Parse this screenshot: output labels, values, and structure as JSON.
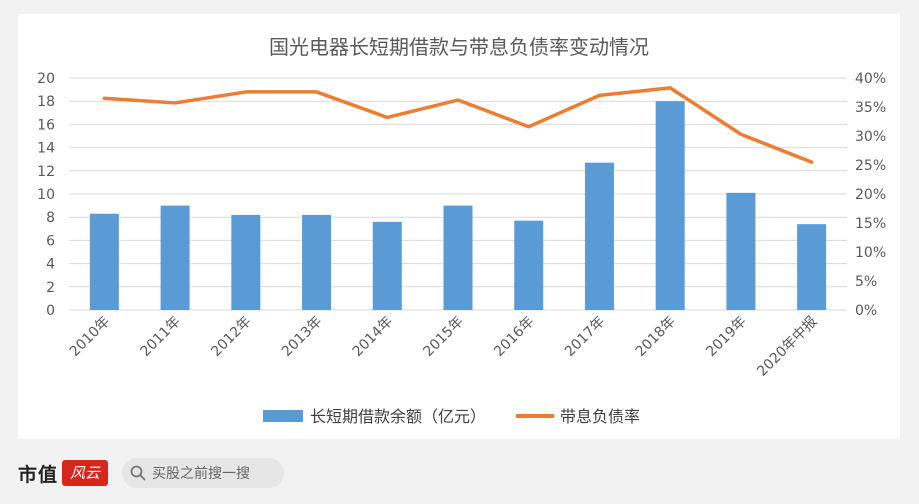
{
  "chart_data": {
    "type": "bar",
    "title": "国光电器长短期借款与带息负债率变动情况",
    "categories": [
      "2010年",
      "2011年",
      "2012年",
      "2013年",
      "2014年",
      "2015年",
      "2016年",
      "2017年",
      "2018年",
      "2019年",
      "2020年中报"
    ],
    "series": [
      {
        "name": "长短期借款余额（亿元）",
        "type": "bar",
        "axis": "left",
        "color": "#5b9bd5",
        "values": [
          8.3,
          9.0,
          8.2,
          8.2,
          7.6,
          9.0,
          7.7,
          12.7,
          18.0,
          10.1,
          7.4
        ]
      },
      {
        "name": "带息负债率",
        "type": "line",
        "axis": "right",
        "color": "#ed7d31",
        "values": [
          36.5,
          35.7,
          37.6,
          37.6,
          33.2,
          36.2,
          31.6,
          37.0,
          38.3,
          30.3,
          25.5
        ]
      }
    ],
    "y_left": {
      "min": 0,
      "max": 20,
      "step": 2
    },
    "y_right": {
      "min": 0,
      "max": 40,
      "step": 5,
      "suffix": "%"
    },
    "grid": true,
    "legend_position": "bottom"
  },
  "footer": {
    "brand_text": "市值",
    "brand_mark_text": "风云",
    "search_placeholder": "买股之前搜一搜",
    "search_icon": "search-icon"
  }
}
